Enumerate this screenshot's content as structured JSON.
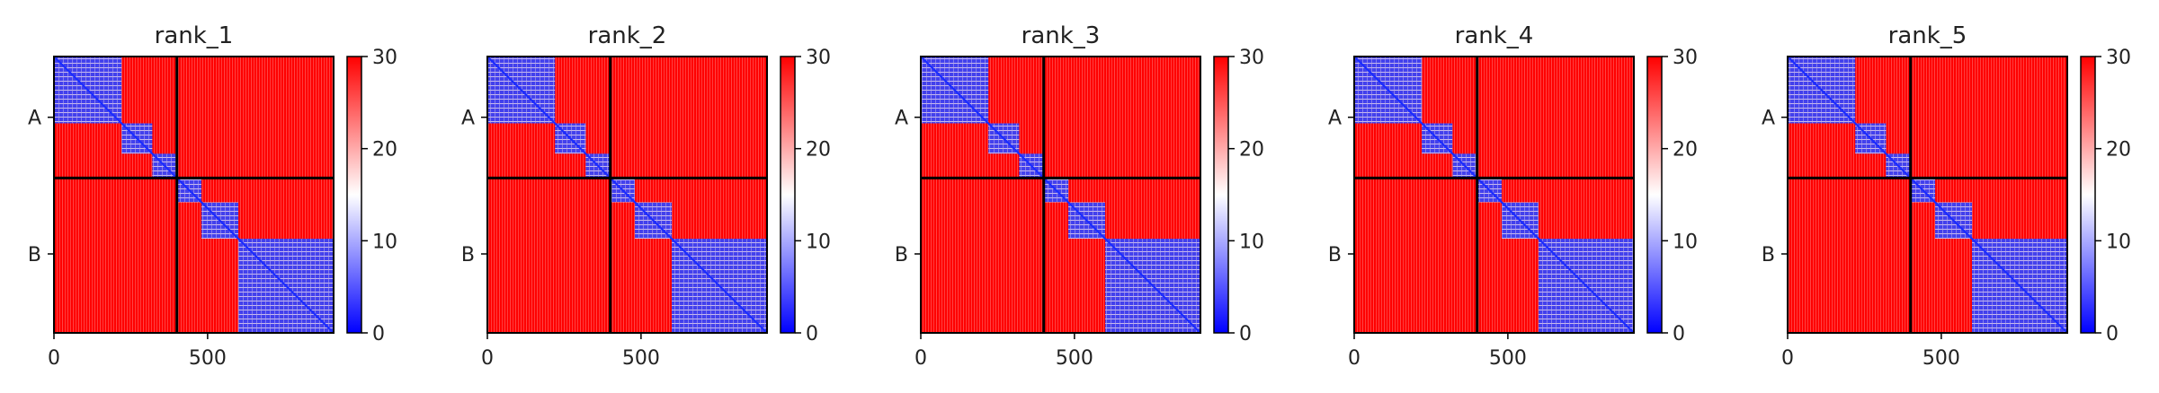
{
  "chart_data": {
    "type": "heatmap",
    "panels": [
      {
        "title": "rank_1",
        "x_ticks": [
          {
            "value": 0,
            "label": "0"
          },
          {
            "value": 500,
            "label": "500"
          }
        ],
        "y_ticks": [
          {
            "value": 200,
            "label": "A"
          },
          {
            "value": 650,
            "label": "B"
          }
        ],
        "colorbar_ticks": [
          0,
          10,
          20,
          30
        ],
        "clim": [
          0,
          30
        ]
      },
      {
        "title": "rank_2",
        "x_ticks": [
          {
            "value": 0,
            "label": "0"
          },
          {
            "value": 500,
            "label": "500"
          }
        ],
        "y_ticks": [
          {
            "value": 200,
            "label": "A"
          },
          {
            "value": 650,
            "label": "B"
          }
        ],
        "colorbar_ticks": [
          0,
          10,
          20,
          30
        ],
        "clim": [
          0,
          30
        ]
      },
      {
        "title": "rank_3",
        "x_ticks": [
          {
            "value": 0,
            "label": "0"
          },
          {
            "value": 500,
            "label": "500"
          }
        ],
        "y_ticks": [
          {
            "value": 200,
            "label": "A"
          },
          {
            "value": 650,
            "label": "B"
          }
        ],
        "colorbar_ticks": [
          0,
          10,
          20,
          30
        ],
        "clim": [
          0,
          30
        ]
      },
      {
        "title": "rank_4",
        "x_ticks": [
          {
            "value": 0,
            "label": "0"
          },
          {
            "value": 500,
            "label": "500"
          }
        ],
        "y_ticks": [
          {
            "value": 200,
            "label": "A"
          },
          {
            "value": 650,
            "label": "B"
          }
        ],
        "colorbar_ticks": [
          0,
          10,
          20,
          30
        ],
        "clim": [
          0,
          30
        ]
      },
      {
        "title": "rank_5",
        "x_ticks": [
          {
            "value": 0,
            "label": "0"
          },
          {
            "value": 500,
            "label": "500"
          }
        ],
        "y_ticks": [
          {
            "value": 200,
            "label": "A"
          },
          {
            "value": 650,
            "label": "B"
          }
        ],
        "colorbar_ticks": [
          0,
          10,
          20,
          30
        ],
        "clim": [
          0,
          30
        ]
      }
    ],
    "matrix_size": 910,
    "chain_boundary": 400,
    "colormap": {
      "low": "#0000ff",
      "mid": "#ffffff",
      "high": "#ff0000"
    },
    "blocks": [
      {
        "range": [
          0,
          400
        ],
        "low_value_domains": [
          [
            0,
            220
          ],
          [
            220,
            320
          ],
          [
            320,
            400
          ]
        ]
      },
      {
        "range": [
          400,
          910
        ],
        "low_value_domains": [
          [
            400,
            480
          ],
          [
            480,
            600
          ],
          [
            600,
            910
          ]
        ]
      }
    ]
  }
}
